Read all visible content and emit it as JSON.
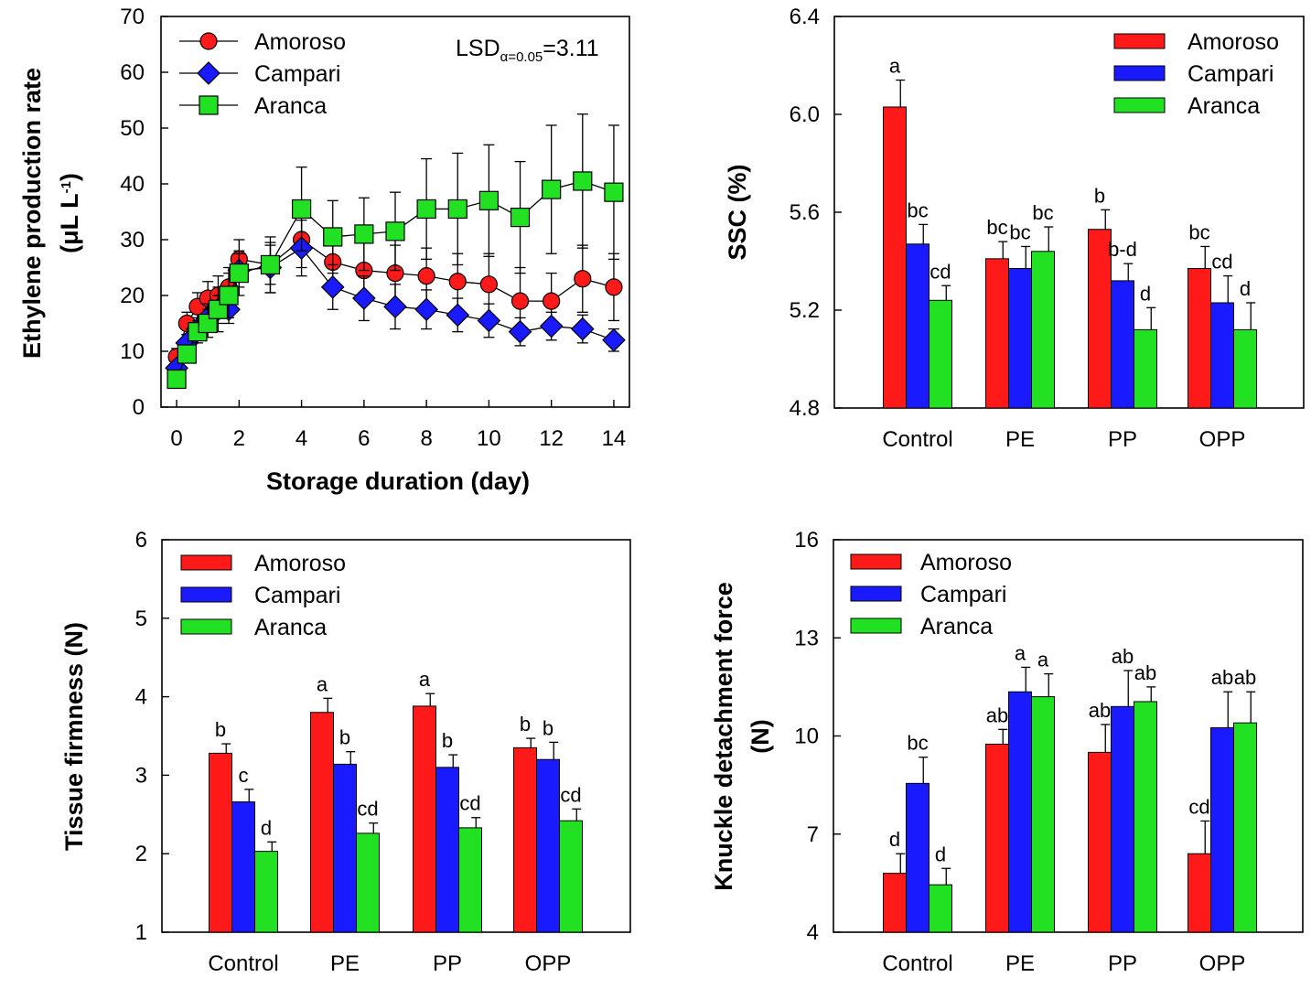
{
  "figure": {
    "colors": {
      "amoroso": "#ff1a1a",
      "campari": "#1a1aff",
      "aranca": "#22e022",
      "axis": "#000000"
    }
  },
  "chart_data": [
    {
      "type": "line",
      "id": "ethylene",
      "ylabel_line1": "Ethylene production rate",
      "ylabel_line2_prefix": "(μL L",
      "ylabel_line2_sup": "-1",
      "ylabel_line2_suffix": ")",
      "xlabel": "Storage duration (day)",
      "annotation_prefix": "LSD",
      "annotation_sub": "α=0.05",
      "annotation_suffix": "=3.11",
      "xlim": [
        -0.5,
        14.5
      ],
      "ylim": [
        0,
        70
      ],
      "xticks": [
        0,
        2,
        4,
        6,
        8,
        10,
        12,
        14
      ],
      "yticks": [
        0,
        10,
        20,
        30,
        40,
        50,
        60,
        70
      ],
      "legend_position": "top-left",
      "series": [
        {
          "name": "Amoroso",
          "marker": "circle",
          "color": "#ff1a1a",
          "x": [
            0,
            0.33,
            0.67,
            1,
            1.33,
            1.67,
            2,
            3,
            4,
            5,
            6,
            7,
            8,
            9,
            10,
            11,
            12,
            13,
            14
          ],
          "y": [
            9,
            15,
            18,
            19.5,
            20,
            21.5,
            26.5,
            25.5,
            30,
            26,
            24.5,
            24,
            23.5,
            22.5,
            22,
            19,
            19,
            23,
            21.5
          ],
          "err": [
            1.5,
            2,
            2.5,
            3,
            3.5,
            3.5,
            3.5,
            3.5,
            5,
            5,
            5,
            5,
            5,
            5,
            5.5,
            6,
            5,
            6,
            6
          ]
        },
        {
          "name": "Campari",
          "marker": "diamond",
          "color": "#1a1aff",
          "x": [
            0,
            0.33,
            0.67,
            1,
            1.33,
            1.67,
            2,
            3,
            4,
            5,
            6,
            7,
            8,
            9,
            10,
            11,
            12,
            13,
            14
          ],
          "y": [
            7,
            11.5,
            14,
            16,
            17.5,
            17.5,
            24.5,
            25,
            28.5,
            21.5,
            19.5,
            18,
            17.5,
            16.5,
            15.5,
            13.5,
            14.5,
            14,
            12
          ],
          "err": [
            1,
            1.5,
            2,
            2.5,
            2.5,
            2.5,
            3,
            4.5,
            5,
            4,
            4,
            4,
            3.5,
            3,
            3,
            2.5,
            2.5,
            2.5,
            2
          ]
        },
        {
          "name": "Aranca",
          "marker": "square",
          "color": "#22e022",
          "x": [
            0,
            0.33,
            0.67,
            1,
            1.33,
            1.67,
            2,
            3,
            4,
            5,
            6,
            7,
            8,
            9,
            10,
            11,
            12,
            13,
            14
          ],
          "y": [
            5,
            9.5,
            13.5,
            15,
            17.5,
            20,
            24,
            25.5,
            35.5,
            30.5,
            31,
            31.5,
            35.5,
            35.5,
            37,
            34,
            39,
            40.5,
            38.5
          ],
          "err": [
            1,
            1.5,
            2,
            2.5,
            4,
            4,
            4,
            5,
            7.5,
            6.5,
            6.5,
            7,
            9,
            10,
            10,
            10,
            11.5,
            12,
            12
          ]
        }
      ]
    },
    {
      "type": "bar",
      "id": "ssc",
      "ylabel": "SSC (%)",
      "xlabel": "",
      "categories": [
        "Control",
        "PE",
        "PP",
        "OPP"
      ],
      "ylim": [
        4.8,
        6.4
      ],
      "yticks": [
        "4.8",
        "5.2",
        "5.6",
        "6.0",
        "6.4"
      ],
      "legend_position": "top-right",
      "series": [
        {
          "name": "Amoroso",
          "color": "#ff1a1a",
          "values": [
            6.03,
            5.41,
            5.53,
            5.37
          ],
          "err": [
            0.11,
            0.07,
            0.08,
            0.09
          ],
          "letters": [
            "a",
            "bc",
            "b",
            "bc"
          ]
        },
        {
          "name": "Campari",
          "color": "#1a1aff",
          "values": [
            5.47,
            5.37,
            5.32,
            5.23
          ],
          "err": [
            0.08,
            0.09,
            0.07,
            0.11
          ],
          "letters": [
            "bc",
            "bc",
            "b-d",
            "cd"
          ]
        },
        {
          "name": "Aranca",
          "color": "#22e022",
          "values": [
            5.24,
            5.44,
            5.12,
            5.12
          ],
          "err": [
            0.06,
            0.1,
            0.09,
            0.11
          ],
          "letters": [
            "cd",
            "bc",
            "d",
            "d"
          ]
        }
      ]
    },
    {
      "type": "bar",
      "id": "firmness",
      "ylabel": "Tissue firmness (N)",
      "xlabel": "",
      "categories": [
        "Control",
        "PE",
        "PP",
        "OPP"
      ],
      "ylim": [
        1,
        6
      ],
      "yticks": [
        "1",
        "2",
        "3",
        "4",
        "5",
        "6"
      ],
      "legend_position": "top-left",
      "series": [
        {
          "name": "Amoroso",
          "color": "#ff1a1a",
          "values": [
            3.28,
            3.8,
            3.88,
            3.35
          ],
          "err": [
            0.12,
            0.18,
            0.16,
            0.12
          ],
          "letters": [
            "b",
            "a",
            "a",
            "b"
          ]
        },
        {
          "name": "Campari",
          "color": "#1a1aff",
          "values": [
            2.66,
            3.14,
            3.1,
            3.2
          ],
          "err": [
            0.16,
            0.16,
            0.16,
            0.22
          ],
          "letters": [
            "c",
            "b",
            "b",
            "b"
          ]
        },
        {
          "name": "Aranca",
          "color": "#22e022",
          "values": [
            2.03,
            2.26,
            2.33,
            2.42
          ],
          "err": [
            0.12,
            0.13,
            0.13,
            0.15
          ],
          "letters": [
            "d",
            "cd",
            "cd",
            "cd"
          ]
        }
      ]
    },
    {
      "type": "bar",
      "id": "knuckle",
      "ylabel_line1": "Knuckle detachment force",
      "ylabel_line2": "(N)",
      "xlabel": "",
      "categories": [
        "Control",
        "PE",
        "PP",
        "OPP"
      ],
      "ylim": [
        4,
        16
      ],
      "yticks": [
        "4",
        "7",
        "10",
        "13",
        "16"
      ],
      "legend_position": "top-left",
      "series": [
        {
          "name": "Amoroso",
          "color": "#ff1a1a",
          "values": [
            5.8,
            9.75,
            9.5,
            6.4
          ],
          "err": [
            0.6,
            0.45,
            0.85,
            1.0
          ],
          "letters": [
            "d",
            "ab",
            "ab",
            "cd"
          ]
        },
        {
          "name": "Campari",
          "color": "#1a1aff",
          "values": [
            8.55,
            11.35,
            10.9,
            10.25
          ],
          "err": [
            0.8,
            0.75,
            1.1,
            1.1
          ],
          "letters": [
            "bc",
            "a",
            "ab",
            "ab"
          ]
        },
        {
          "name": "Aranca",
          "color": "#22e022",
          "values": [
            5.45,
            11.2,
            11.05,
            10.4
          ],
          "err": [
            0.5,
            0.7,
            0.45,
            0.95
          ],
          "letters": [
            "d",
            "a",
            "ab",
            "ab"
          ]
        }
      ]
    }
  ]
}
